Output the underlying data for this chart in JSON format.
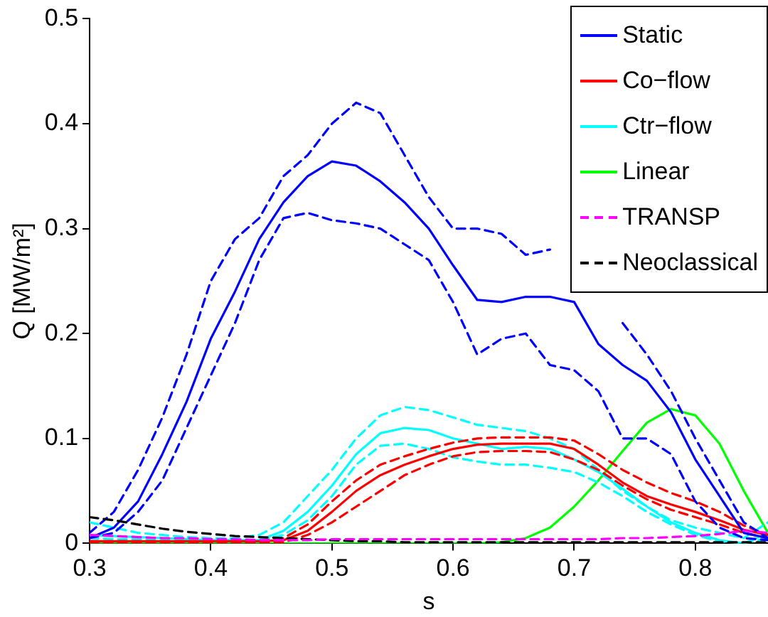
{
  "chart_data": {
    "type": "line",
    "xlabel": "s",
    "ylabel": "Q [MW/m²]",
    "x": [
      0.3,
      0.32,
      0.34,
      0.36,
      0.38,
      0.4,
      0.42,
      0.44,
      0.46,
      0.48,
      0.5,
      0.52,
      0.54,
      0.56,
      0.58,
      0.6,
      0.62,
      0.64,
      0.66,
      0.68,
      0.7,
      0.72,
      0.74,
      0.76,
      0.78,
      0.8,
      0.82,
      0.84,
      0.86
    ],
    "xlim": [
      0.3,
      0.86
    ],
    "xticks": [
      0.3,
      0.4,
      0.5,
      0.6,
      0.7,
      0.8
    ],
    "ylim": [
      0,
      0.5
    ],
    "yticks": [
      0,
      0.1,
      0.2,
      0.3,
      0.4,
      0.5
    ],
    "grid": false,
    "legend": "top right",
    "marker": "none",
    "series": [
      {
        "name": "Static",
        "color": "#0000ff",
        "line_style": "solid",
        "values": [
          0.005,
          0.015,
          0.04,
          0.085,
          0.135,
          0.195,
          0.24,
          0.29,
          0.325,
          0.35,
          0.364,
          0.36,
          0.345,
          0.325,
          0.3,
          0.265,
          0.232,
          0.23,
          0.235,
          0.235,
          0.23,
          0.19,
          0.17,
          0.155,
          0.125,
          0.08,
          0.045,
          0.01,
          0.005
        ]
      },
      {
        "color": "#0000ff",
        "line_style": "dashed",
        "values": [
          0.01,
          0.03,
          0.07,
          0.12,
          0.18,
          0.25,
          0.29,
          0.31,
          0.35,
          0.37,
          0.4,
          0.42,
          0.41,
          0.37,
          0.33,
          0.3,
          0.3,
          0.295,
          0.275,
          0.28,
          null,
          null,
          0.21,
          0.18,
          0.145,
          0.1,
          0.06,
          0.02,
          0.005
        ]
      },
      {
        "color": "#0000ff",
        "line_style": "dashed",
        "values": [
          0.005,
          0.01,
          0.03,
          0.06,
          0.11,
          0.16,
          0.21,
          0.27,
          0.31,
          0.315,
          0.308,
          0.305,
          0.3,
          0.285,
          0.27,
          0.23,
          0.18,
          0.195,
          0.2,
          0.17,
          0.165,
          0.145,
          0.1,
          0.1,
          0.085,
          0.04,
          0.015,
          0.005,
          0.003
        ]
      },
      {
        "name": "Co−flow",
        "color": "#ff0000",
        "line_style": "solid",
        "values": [
          0.002,
          0.002,
          0.002,
          0.002,
          0.002,
          0.002,
          0.002,
          0.002,
          0.003,
          0.012,
          0.03,
          0.05,
          0.065,
          0.075,
          0.083,
          0.09,
          0.094,
          0.095,
          0.095,
          0.095,
          0.09,
          0.075,
          0.058,
          0.045,
          0.037,
          0.03,
          0.022,
          0.013,
          0.008
        ]
      },
      {
        "color": "#ff0000",
        "line_style": "dashed",
        "values": [
          0.002,
          0.002,
          0.002,
          0.002,
          0.002,
          0.002,
          0.002,
          0.002,
          0.005,
          0.018,
          0.04,
          0.06,
          0.075,
          0.083,
          0.09,
          0.096,
          0.1,
          0.101,
          0.101,
          0.101,
          0.098,
          0.085,
          0.07,
          0.058,
          0.048,
          0.04,
          0.03,
          0.017,
          0.008
        ]
      },
      {
        "color": "#ff0000",
        "line_style": "dashed",
        "values": [
          0.001,
          0.001,
          0.001,
          0.001,
          0.001,
          0.001,
          0.001,
          0.001,
          0.001,
          0.008,
          0.02,
          0.035,
          0.05,
          0.065,
          0.075,
          0.083,
          0.087,
          0.088,
          0.088,
          0.087,
          0.08,
          0.07,
          0.055,
          0.042,
          0.032,
          0.025,
          0.018,
          0.01,
          0.005
        ]
      },
      {
        "name": "Ctr−flow",
        "color": "#00ffff",
        "line_style": "solid",
        "values": [
          0.008,
          0.007,
          0.006,
          0.005,
          0.004,
          0.003,
          0.003,
          0.003,
          0.012,
          0.03,
          0.055,
          0.085,
          0.105,
          0.11,
          0.108,
          0.1,
          0.095,
          0.09,
          0.092,
          0.09,
          0.08,
          0.068,
          0.052,
          0.035,
          0.02,
          0.01,
          0.003,
          0,
          0.01
        ]
      },
      {
        "color": "#00ffff",
        "line_style": "dashed",
        "values": [
          0.02,
          0.015,
          0.01,
          0.008,
          0.006,
          0.005,
          0.005,
          0.008,
          0.02,
          0.045,
          0.07,
          0.1,
          0.122,
          0.13,
          0.127,
          0.12,
          0.113,
          0.11,
          0.107,
          0.1,
          0.09,
          0.07,
          0.05,
          0.035,
          0.022,
          0.015,
          0.01,
          0.005,
          0.02
        ]
      },
      {
        "color": "#00ffff",
        "line_style": "dashed",
        "values": [
          0.005,
          0.004,
          0.004,
          0.003,
          0.003,
          0.003,
          0.003,
          0.003,
          0.008,
          0.022,
          0.045,
          0.075,
          0.093,
          0.095,
          0.09,
          0.082,
          0.078,
          0.075,
          0.075,
          0.072,
          0.068,
          0.058,
          0.045,
          0.03,
          0.018,
          0.008,
          0.002,
          0,
          0.005
        ]
      },
      {
        "name": "Linear",
        "color": "#00ff00",
        "line_style": "solid",
        "values": [
          0,
          0,
          0,
          0,
          0,
          0,
          0,
          0,
          0,
          0,
          0,
          0,
          0,
          0,
          0,
          0,
          0,
          0.001,
          0.005,
          0.015,
          0.035,
          0.06,
          0.088,
          0.115,
          0.128,
          0.122,
          0.095,
          0.05,
          0.01
        ]
      },
      {
        "name": "TRANSP",
        "color": "#ff00ff",
        "line_style": "dashed",
        "values": [
          0.008,
          0.007,
          0.006,
          0.005,
          0.005,
          0.004,
          0.004,
          0.003,
          0.003,
          0.003,
          0.004,
          0.004,
          0.004,
          0.004,
          0.004,
          0.004,
          0.004,
          0.004,
          0.004,
          0.004,
          0.004,
          0.004,
          0.005,
          0.005,
          0.006,
          0.007,
          0.009,
          0.012,
          0.01
        ]
      },
      {
        "name": "Neoclassical",
        "color": "#000000",
        "line_style": "dashed",
        "values": [
          0.025,
          0.022,
          0.018,
          0.014,
          0.011,
          0.009,
          0.007,
          0.006,
          0.005,
          0.004,
          0.003,
          0.002,
          0.002,
          0.001,
          0.001,
          0.001,
          0.001,
          0.001,
          0.001,
          0.001,
          0.001,
          0.001,
          0.001,
          0.001,
          0.001,
          0.001,
          0.001,
          0.001,
          0.001
        ]
      }
    ]
  }
}
